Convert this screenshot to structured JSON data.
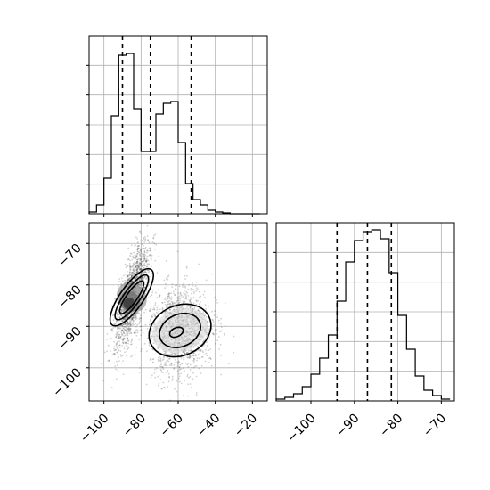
{
  "chart_data": [
    {
      "panel": "top-left",
      "type": "histogram",
      "variable": "x",
      "xlim": [
        -108,
        -12
      ],
      "ylim": [
        0,
        1
      ],
      "x_ticks": [
        -100,
        -80,
        -60,
        -40,
        -20
      ],
      "grid": true,
      "bins": {
        "edges": [
          -108,
          -104,
          -100,
          -96,
          -92,
          -88,
          -84,
          -80,
          -76,
          -72,
          -68,
          -64,
          -60,
          -56,
          -52,
          -48,
          -44,
          -40,
          -36,
          -32,
          -28,
          -24,
          -20,
          -16
        ],
        "counts": [
          0.01,
          0.05,
          0.2,
          0.55,
          0.89,
          0.9,
          0.59,
          0.35,
          0.35,
          0.56,
          0.62,
          0.63,
          0.4,
          0.17,
          0.08,
          0.05,
          0.02,
          0.01,
          0.005,
          0.0,
          0.0,
          0.0,
          0.0
        ]
      },
      "quantile_lines": [
        -90,
        -75,
        -53
      ]
    },
    {
      "panel": "bottom-left",
      "type": "scatter",
      "subtype": "2d-histogram-with-contours",
      "x_variable": "x",
      "y_variable": "y",
      "xlim": [
        -108,
        -12
      ],
      "ylim": [
        -108,
        -65
      ],
      "x_ticks": [
        -100,
        -80,
        -60,
        -40,
        -20
      ],
      "y_ticks": [
        -70,
        -80,
        -90,
        -100
      ],
      "grid": true,
      "clusters": [
        {
          "mean_x": -85,
          "mean_y": -83,
          "sx": 6,
          "sy": 7,
          "tilt_deg": 45,
          "relative_density": 1.0
        },
        {
          "mean_x": -59,
          "mean_y": -91,
          "sx": 9,
          "sy": 6,
          "tilt_deg": 10,
          "relative_density": 0.4
        }
      ],
      "contour_levels": 3
    },
    {
      "panel": "bottom-right",
      "type": "histogram",
      "variable": "y",
      "xlim": [
        -108,
        -67
      ],
      "ylim": [
        0,
        1
      ],
      "x_ticks": [
        -100,
        -90,
        -80,
        -70
      ],
      "grid": true,
      "bins": {
        "edges": [
          -108,
          -106,
          -104,
          -102,
          -100,
          -98,
          -96,
          -94,
          -92,
          -90,
          -88,
          -86,
          -84,
          -82,
          -80,
          -78,
          -76,
          -74,
          -72,
          -70,
          -68
        ],
        "counts": [
          0.01,
          0.02,
          0.04,
          0.08,
          0.15,
          0.24,
          0.37,
          0.56,
          0.78,
          0.9,
          0.95,
          0.96,
          0.91,
          0.72,
          0.48,
          0.29,
          0.14,
          0.06,
          0.03,
          0.01
        ]
      },
      "quantile_lines": [
        -94,
        -87,
        -81.5
      ]
    }
  ]
}
